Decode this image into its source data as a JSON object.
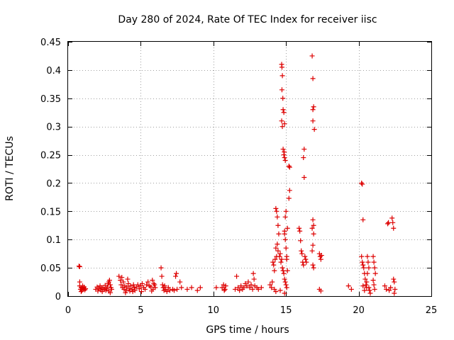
{
  "chart_data": {
    "type": "scatter",
    "title": "Day 280 of 2024, Rate Of TEC Index for receiver iisc",
    "xlabel": "GPS time / hours",
    "ylabel": "ROTI / TECUs",
    "xlim": [
      0,
      25
    ],
    "ylim": [
      0,
      0.45
    ],
    "x_ticks": [
      0,
      5,
      10,
      15,
      20,
      25
    ],
    "y_ticks": [
      0,
      0.05,
      0.1,
      0.15,
      0.2,
      0.25,
      0.3,
      0.35,
      0.4,
      0.45
    ],
    "x_tick_labels": [
      "0",
      "5",
      "10",
      "15",
      "20",
      "25"
    ],
    "y_tick_labels": [
      "0",
      "0.05",
      "0.1",
      "0.15",
      "0.2",
      "0.25",
      "0.3",
      "0.35",
      "0.4",
      "0.45"
    ],
    "grid": true,
    "marker": "+",
    "color": "#dd0000",
    "series": [
      {
        "name": "ROTI",
        "points": [
          [
            0.75,
            0.053
          ],
          [
            0.8,
            0.052
          ],
          [
            0.8,
            0.025
          ],
          [
            0.8,
            0.018
          ],
          [
            0.85,
            0.012
          ],
          [
            0.9,
            0.015
          ],
          [
            0.95,
            0.01
          ],
          [
            1.0,
            0.014
          ],
          [
            1.05,
            0.012
          ],
          [
            1.1,
            0.016
          ],
          [
            1.15,
            0.011
          ],
          [
            1.2,
            0.013
          ],
          [
            0.9,
            0.008
          ],
          [
            1.0,
            0.018
          ],
          [
            1.9,
            0.012
          ],
          [
            2.0,
            0.016
          ],
          [
            2.05,
            0.009
          ],
          [
            2.1,
            0.013
          ],
          [
            2.2,
            0.018
          ],
          [
            2.25,
            0.011
          ],
          [
            2.3,
            0.015
          ],
          [
            2.35,
            0.008
          ],
          [
            2.4,
            0.014
          ],
          [
            2.5,
            0.012
          ],
          [
            2.55,
            0.019
          ],
          [
            2.6,
            0.01
          ],
          [
            2.65,
            0.013
          ],
          [
            2.7,
            0.016
          ],
          [
            2.75,
            0.022
          ],
          [
            2.8,
            0.025
          ],
          [
            2.85,
            0.028
          ],
          [
            2.9,
            0.02
          ],
          [
            2.95,
            0.015
          ],
          [
            3.0,
            0.012
          ],
          [
            2.8,
            0.009
          ],
          [
            2.9,
            0.006
          ],
          [
            3.5,
            0.035
          ],
          [
            3.6,
            0.028
          ],
          [
            3.65,
            0.02
          ],
          [
            3.7,
            0.033
          ],
          [
            3.75,
            0.015
          ],
          [
            3.8,
            0.025
          ],
          [
            3.85,
            0.012
          ],
          [
            3.9,
            0.018
          ],
          [
            4.0,
            0.01
          ],
          [
            4.05,
            0.016
          ],
          [
            4.1,
            0.03
          ],
          [
            4.15,
            0.022
          ],
          [
            4.2,
            0.013
          ],
          [
            4.3,
            0.018
          ],
          [
            4.4,
            0.012
          ],
          [
            4.5,
            0.02
          ],
          [
            4.55,
            0.015
          ],
          [
            4.6,
            0.01
          ],
          [
            4.7,
            0.016
          ],
          [
            4.8,
            0.02
          ],
          [
            4.9,
            0.013
          ],
          [
            5.0,
            0.018
          ],
          [
            5.1,
            0.022
          ],
          [
            5.2,
            0.015
          ],
          [
            5.3,
            0.012
          ],
          [
            5.4,
            0.02
          ],
          [
            5.5,
            0.025
          ],
          [
            5.6,
            0.018
          ],
          [
            5.7,
            0.016
          ],
          [
            5.8,
            0.028
          ],
          [
            5.9,
            0.022
          ],
          [
            6.0,
            0.015
          ],
          [
            5.95,
            0.02
          ],
          [
            5.85,
            0.012
          ],
          [
            5.75,
            0.009
          ],
          [
            4.25,
            0.009
          ],
          [
            4.45,
            0.008
          ],
          [
            5.05,
            0.008
          ],
          [
            3.95,
            0.006
          ],
          [
            6.4,
            0.05
          ],
          [
            6.45,
            0.035
          ],
          [
            6.5,
            0.02
          ],
          [
            6.55,
            0.015
          ],
          [
            6.6,
            0.01
          ],
          [
            6.65,
            0.018
          ],
          [
            6.7,
            0.012
          ],
          [
            6.8,
            0.008
          ],
          [
            6.9,
            0.015
          ],
          [
            7.0,
            0.01
          ],
          [
            7.2,
            0.012
          ],
          [
            7.3,
            0.01
          ],
          [
            7.4,
            0.035
          ],
          [
            7.45,
            0.04
          ],
          [
            7.5,
            0.012
          ],
          [
            7.7,
            0.025
          ],
          [
            7.8,
            0.015
          ],
          [
            8.2,
            0.012
          ],
          [
            8.5,
            0.015
          ],
          [
            8.9,
            0.01
          ],
          [
            9.1,
            0.015
          ],
          [
            10.2,
            0.015
          ],
          [
            10.6,
            0.015
          ],
          [
            10.7,
            0.02
          ],
          [
            10.75,
            0.01
          ],
          [
            10.8,
            0.012
          ],
          [
            10.85,
            0.018
          ],
          [
            11.5,
            0.012
          ],
          [
            11.6,
            0.035
          ],
          [
            11.7,
            0.015
          ],
          [
            11.8,
            0.01
          ],
          [
            11.9,
            0.018
          ],
          [
            12.0,
            0.012
          ],
          [
            12.1,
            0.015
          ],
          [
            12.2,
            0.022
          ],
          [
            12.3,
            0.018
          ],
          [
            12.4,
            0.025
          ],
          [
            12.5,
            0.015
          ],
          [
            12.6,
            0.02
          ],
          [
            12.7,
            0.012
          ],
          [
            12.75,
            0.04
          ],
          [
            12.8,
            0.03
          ],
          [
            12.85,
            0.018
          ],
          [
            13.0,
            0.015
          ],
          [
            13.1,
            0.012
          ],
          [
            13.3,
            0.015
          ],
          [
            13.9,
            0.02
          ],
          [
            14.0,
            0.015
          ],
          [
            14.05,
            0.025
          ],
          [
            14.1,
            0.06
          ],
          [
            14.15,
            0.055
          ],
          [
            14.2,
            0.045
          ],
          [
            14.25,
            0.065
          ],
          [
            14.3,
            0.085
          ],
          [
            14.35,
            0.07
          ],
          [
            14.4,
            0.092
          ],
          [
            14.45,
            0.08
          ],
          [
            14.3,
            0.155
          ],
          [
            14.35,
            0.15
          ],
          [
            14.4,
            0.14
          ],
          [
            14.45,
            0.125
          ],
          [
            14.5,
            0.11
          ],
          [
            14.55,
            0.07
          ],
          [
            14.6,
            0.075
          ],
          [
            14.65,
            0.06
          ],
          [
            14.7,
            0.065
          ],
          [
            14.75,
            0.05
          ],
          [
            14.8,
            0.045
          ],
          [
            14.85,
            0.04
          ],
          [
            14.9,
            0.03
          ],
          [
            14.95,
            0.025
          ],
          [
            15.0,
            0.02
          ],
          [
            15.05,
            0.015
          ],
          [
            14.7,
            0.41
          ],
          [
            14.72,
            0.405
          ],
          [
            14.75,
            0.39
          ],
          [
            14.72,
            0.365
          ],
          [
            14.78,
            0.35
          ],
          [
            14.7,
            0.31
          ],
          [
            14.75,
            0.3
          ],
          [
            14.8,
            0.33
          ],
          [
            14.85,
            0.325
          ],
          [
            14.9,
            0.305
          ],
          [
            14.8,
            0.26
          ],
          [
            14.85,
            0.25
          ],
          [
            14.9,
            0.245
          ],
          [
            14.95,
            0.24
          ],
          [
            14.88,
            0.255
          ],
          [
            14.95,
            0.14
          ],
          [
            15.0,
            0.15
          ],
          [
            14.9,
            0.115
          ],
          [
            14.95,
            0.1
          ],
          [
            15.0,
            0.085
          ],
          [
            15.05,
            0.065
          ],
          [
            15.1,
            0.045
          ],
          [
            15.2,
            0.23
          ],
          [
            15.25,
            0.228
          ],
          [
            15.25,
            0.187
          ],
          [
            15.2,
            0.173
          ],
          [
            15.1,
            0.12
          ],
          [
            14.9,
            0.11
          ],
          [
            15.05,
            0.07
          ],
          [
            14.6,
            0.01
          ],
          [
            14.9,
            0.005
          ],
          [
            14.2,
            0.012
          ],
          [
            14.3,
            0.008
          ],
          [
            15.9,
            0.12
          ],
          [
            15.95,
            0.115
          ],
          [
            16.0,
            0.098
          ],
          [
            16.05,
            0.08
          ],
          [
            16.1,
            0.075
          ],
          [
            16.15,
            0.06
          ],
          [
            16.2,
            0.055
          ],
          [
            16.25,
            0.26
          ],
          [
            16.2,
            0.245
          ],
          [
            16.25,
            0.21
          ],
          [
            16.3,
            0.07
          ],
          [
            16.35,
            0.065
          ],
          [
            16.4,
            0.06
          ],
          [
            16.8,
            0.425
          ],
          [
            16.85,
            0.385
          ],
          [
            16.85,
            0.33
          ],
          [
            16.9,
            0.335
          ],
          [
            16.85,
            0.31
          ],
          [
            16.95,
            0.295
          ],
          [
            16.85,
            0.135
          ],
          [
            16.9,
            0.125
          ],
          [
            16.8,
            0.12
          ],
          [
            16.9,
            0.11
          ],
          [
            16.85,
            0.09
          ],
          [
            16.8,
            0.08
          ],
          [
            16.85,
            0.055
          ],
          [
            16.9,
            0.05
          ],
          [
            17.3,
            0.075
          ],
          [
            17.35,
            0.07
          ],
          [
            17.4,
            0.065
          ],
          [
            17.45,
            0.072
          ],
          [
            17.3,
            0.012
          ],
          [
            17.4,
            0.009
          ],
          [
            19.3,
            0.018
          ],
          [
            19.5,
            0.012
          ],
          [
            20.2,
            0.2
          ],
          [
            20.25,
            0.198
          ],
          [
            20.3,
            0.135
          ],
          [
            20.2,
            0.07
          ],
          [
            20.25,
            0.06
          ],
          [
            20.3,
            0.055
          ],
          [
            20.35,
            0.05
          ],
          [
            20.4,
            0.04
          ],
          [
            20.45,
            0.03
          ],
          [
            20.5,
            0.02
          ],
          [
            20.55,
            0.015
          ],
          [
            20.6,
            0.07
          ],
          [
            20.65,
            0.06
          ],
          [
            20.7,
            0.05
          ],
          [
            20.6,
            0.04
          ],
          [
            20.55,
            0.025
          ],
          [
            20.7,
            0.015
          ],
          [
            20.75,
            0.01
          ],
          [
            20.8,
            0.005
          ],
          [
            20.3,
            0.018
          ],
          [
            20.4,
            0.01
          ],
          [
            21.0,
            0.07
          ],
          [
            21.05,
            0.06
          ],
          [
            21.1,
            0.05
          ],
          [
            21.15,
            0.04
          ],
          [
            21.0,
            0.028
          ],
          [
            21.05,
            0.02
          ],
          [
            21.1,
            0.012
          ],
          [
            21.8,
            0.018
          ],
          [
            21.9,
            0.012
          ],
          [
            22.0,
            0.128
          ],
          [
            22.05,
            0.13
          ],
          [
            22.1,
            0.01
          ],
          [
            22.2,
            0.015
          ],
          [
            22.3,
            0.138
          ],
          [
            22.35,
            0.13
          ],
          [
            22.4,
            0.12
          ],
          [
            22.4,
            0.03
          ],
          [
            22.45,
            0.025
          ],
          [
            22.5,
            0.012
          ],
          [
            22.45,
            0.005
          ]
        ]
      }
    ]
  }
}
